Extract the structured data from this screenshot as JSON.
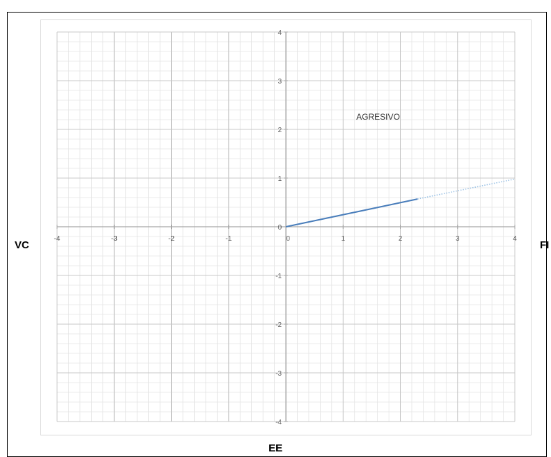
{
  "chart_data": {
    "type": "line",
    "xlim": [
      -4,
      4
    ],
    "ylim": [
      -4,
      4
    ],
    "xticks": [
      "-4",
      "-3",
      "-2",
      "-1",
      "0",
      "1",
      "2",
      "3",
      "4"
    ],
    "yticks": [
      "4",
      "3",
      "2",
      "1",
      "0",
      "-1",
      "-2",
      "-3",
      "-4"
    ],
    "grid": true,
    "minor_grid": true,
    "series": [
      {
        "points": [
          [
            0,
            0
          ],
          [
            2.3,
            0.57
          ]
        ],
        "color": "#4a7ebb",
        "style": "solid"
      },
      {
        "points": [
          [
            2.3,
            0.57
          ],
          [
            4,
            0.98
          ]
        ],
        "color": "#9dc3e6",
        "style": "dotted"
      }
    ],
    "annotation": {
      "text": "AGRESIVO",
      "x": 1.23,
      "y": 2.2
    },
    "side_labels": {
      "left": "VC",
      "right": "FI",
      "bottom": "EE"
    },
    "colors": {
      "major_grid": "#c8c8c8",
      "minor_grid": "#e4e4e4",
      "axis": "#a6a6a6",
      "tick_text": "#595959"
    }
  }
}
